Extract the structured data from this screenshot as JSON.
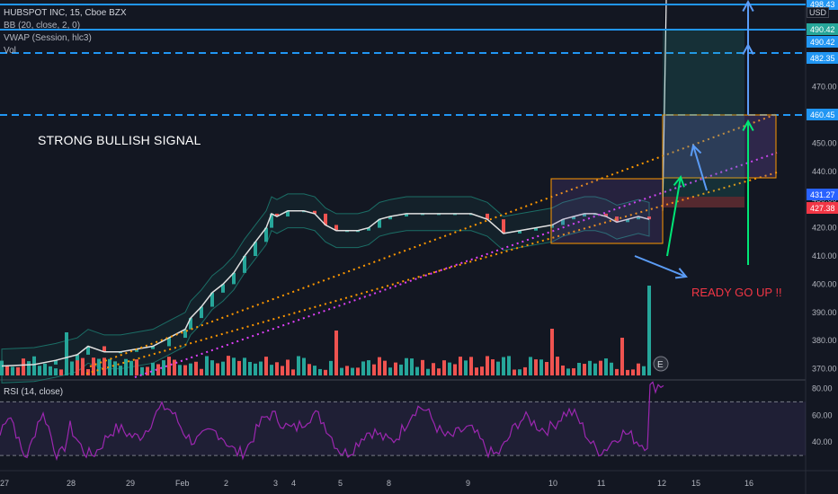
{
  "header": {
    "symbol": "HUBSPOT INC, 15, Cboe BZX",
    "bb": "BB (20, close, 2, 0)",
    "vwap": "VWAP (Session, hlc3)",
    "vol": "Vol",
    "currency": "USD"
  },
  "annotations": {
    "signal": "STRONG BULLISH SIGNAL",
    "ready": "READY GO UP !!",
    "earnings_marker": "E"
  },
  "rsi_label": "RSI (14, close)",
  "colors": {
    "background": "#131722",
    "up": "#26a69a",
    "down": "#ef5350",
    "level_line": "#2196f3",
    "channel": "#ff9800",
    "midline": "#e040fb",
    "rsi": "#9c27b0",
    "arrow_green": "#00e676",
    "arrow_blue": "#5b9cf6"
  },
  "chart_data": {
    "type": "candlestick",
    "x_ticks": [
      "27",
      "28",
      "29",
      "Feb",
      "2",
      "3",
      "4",
      "5",
      "8",
      "9",
      "10",
      "11",
      "12",
      "15",
      "16"
    ],
    "price_ticks": [
      370,
      380,
      390,
      400,
      410,
      420,
      430,
      440,
      450,
      460,
      470
    ],
    "ylim": [
      366,
      501
    ],
    "price_tags": [
      {
        "label": "498.43",
        "value": 498.43,
        "color": "#2196f3"
      },
      {
        "label": "490.42",
        "value": 490.42,
        "color": "#26a69a"
      },
      {
        "label": "490.42",
        "value": 490.42,
        "color": "#2196f3"
      },
      {
        "label": "482.35",
        "value": 482.35,
        "color": "#2196f3"
      },
      {
        "label": "460.45",
        "value": 460.45,
        "color": "#2196f3"
      },
      {
        "label": "431.27",
        "value": 431.27,
        "color": "#2962ff"
      },
      {
        "label": "427.38",
        "value": 427.38,
        "color": "#f23645"
      }
    ],
    "levels": [
      {
        "value": 498.43,
        "style": "solid"
      },
      {
        "value": 490.42,
        "style": "solid"
      },
      {
        "value": 482.35,
        "style": "dashed"
      },
      {
        "value": 460.45,
        "style": "dashed"
      }
    ],
    "price_path": [
      [
        0,
        371
      ],
      [
        6,
        371.5
      ],
      [
        10,
        373
      ],
      [
        14,
        375
      ],
      [
        16,
        378
      ],
      [
        19,
        376
      ],
      [
        22,
        376
      ],
      [
        25,
        377
      ],
      [
        28,
        378
      ],
      [
        31,
        381
      ],
      [
        34,
        384
      ],
      [
        35,
        388
      ],
      [
        37,
        392
      ],
      [
        39,
        397
      ],
      [
        41,
        400
      ],
      [
        43,
        404
      ],
      [
        45,
        410
      ],
      [
        47,
        415
      ],
      [
        49,
        420
      ],
      [
        50,
        425
      ],
      [
        51,
        424
      ],
      [
        53,
        426
      ],
      [
        56,
        426
      ],
      [
        58,
        425
      ],
      [
        60,
        421
      ],
      [
        62,
        419
      ],
      [
        64,
        419
      ],
      [
        66,
        419
      ],
      [
        68,
        420
      ],
      [
        70,
        423
      ],
      [
        72,
        424
      ],
      [
        75,
        425
      ],
      [
        78,
        425
      ],
      [
        81,
        425
      ],
      [
        84,
        425
      ],
      [
        87,
        425
      ],
      [
        90,
        423
      ],
      [
        93,
        418
      ],
      [
        96,
        419
      ],
      [
        99,
        420
      ],
      [
        102,
        421
      ],
      [
        104,
        423
      ],
      [
        106,
        424
      ],
      [
        108,
        425
      ],
      [
        110,
        425
      ],
      [
        112,
        424
      ],
      [
        114,
        422
      ],
      [
        116,
        423
      ],
      [
        118,
        424
      ],
      [
        120,
        423
      ]
    ],
    "spike_candle": {
      "index": 120,
      "open": 426,
      "close": 498.43
    },
    "rsi": {
      "ticks": [
        40,
        60,
        80
      ],
      "bands": [
        30,
        70
      ],
      "ylim": [
        20,
        85
      ]
    }
  }
}
